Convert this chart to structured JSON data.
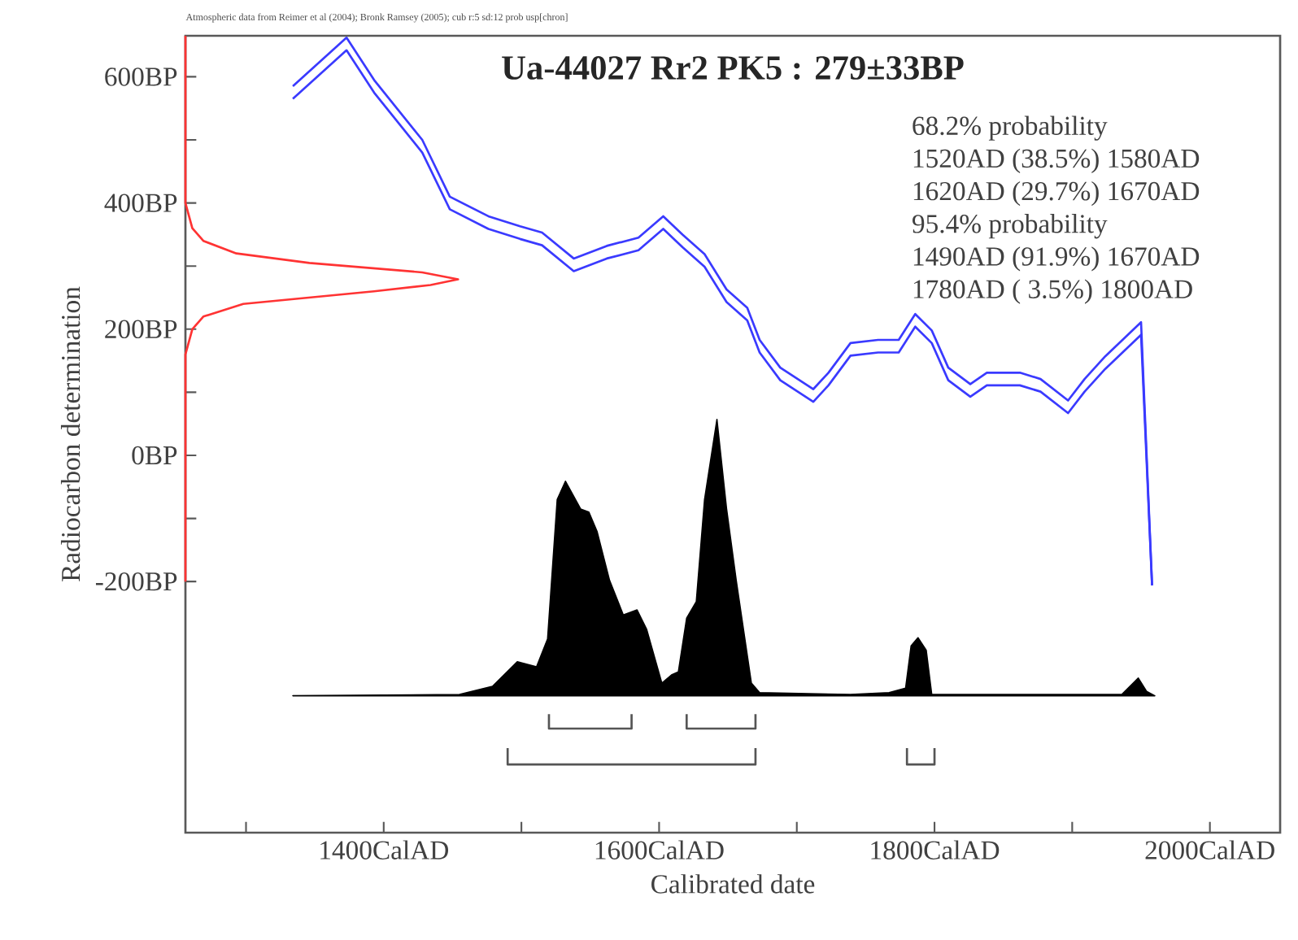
{
  "chart_data": {
    "type": "line",
    "title": "Ua-44027 Rr2 PK5 : 279±33BP",
    "xlabel": "Calibrated date",
    "ylabel": "Radiocarbon determination",
    "annotations": [
      "Atmospheric data from Reimer et al (2004); Bronk Ramsey (2005); cub r:5 sd:12 prob usp[chron]",
      "68.2% probability",
      "1520AD (38.5%) 1580AD",
      "1620AD (29.7%) 1670AD",
      "95.4% probability",
      "1490AD (91.9%) 1670AD",
      "1780AD ( 3.5%) 1800AD"
    ],
    "xlim": [
      1256,
      2051
    ],
    "ylim": [
      -598,
      665
    ],
    "xticks": [
      {
        "value": 1300,
        "label": null
      },
      {
        "value": 1400,
        "label": "1400CalAD"
      },
      {
        "value": 1500,
        "label": null
      },
      {
        "value": 1600,
        "label": "1600CalAD"
      },
      {
        "value": 1700,
        "label": null
      },
      {
        "value": 1800,
        "label": "1800CalAD"
      },
      {
        "value": 1900,
        "label": null
      },
      {
        "value": 2000,
        "label": "2000CalAD"
      }
    ],
    "yticks": [
      {
        "value": -200,
        "label": "-200BP"
      },
      {
        "value": -100,
        "label": null
      },
      {
        "value": 0,
        "label": "0BP"
      },
      {
        "value": 100,
        "label": null
      },
      {
        "value": 200,
        "label": "200BP"
      },
      {
        "value": 300,
        "label": null
      },
      {
        "value": 400,
        "label": "400BP"
      },
      {
        "value": 500,
        "label": null
      },
      {
        "value": 600,
        "label": "600BP"
      }
    ],
    "marker": "none",
    "series": [
      {
        "color": "#3a3aff",
        "x": [
          1334,
          1373,
          1393,
          1428,
          1448,
          1476,
          1499,
          1515,
          1538,
          1562,
          1585,
          1603,
          1617,
          1633,
          1649,
          1664,
          1673,
          1688,
          1712,
          1723,
          1739,
          1759,
          1774,
          1786,
          1798,
          1810,
          1826,
          1838,
          1862,
          1877,
          1897,
          1909,
          1924,
          1950,
          1958
        ],
        "values": [
          585,
          662,
          595,
          500,
          410,
          379,
          363,
          353,
          312,
          332,
          345,
          379,
          350,
          319,
          263,
          234,
          183,
          139,
          105,
          131,
          178,
          183,
          183,
          224,
          198,
          139,
          113,
          131,
          131,
          121,
          87,
          121,
          157,
          211,
          -206
        ]
      },
      {
        "color": "#3a3aff",
        "x": [
          1334,
          1373,
          1393,
          1428,
          1448,
          1476,
          1499,
          1515,
          1538,
          1562,
          1585,
          1603,
          1617,
          1633,
          1649,
          1664,
          1673,
          1688,
          1712,
          1723,
          1739,
          1759,
          1774,
          1786,
          1798,
          1810,
          1826,
          1838,
          1862,
          1877,
          1897,
          1909,
          1924,
          1950,
          1958
        ],
        "values": [
          565,
          642,
          575,
          480,
          390,
          359,
          343,
          333,
          292,
          312,
          325,
          359,
          330,
          299,
          243,
          214,
          163,
          119,
          85,
          111,
          158,
          163,
          163,
          204,
          178,
          119,
          93,
          111,
          111,
          101,
          67,
          101,
          137,
          191,
          -206
        ]
      },
      {
        "color": "#ff3333",
        "x": [
          1256,
          1256,
          1261,
          1269,
          1298,
          1393,
          1434,
          1454,
          1428,
          1346,
          1293,
          1269,
          1261,
          1256,
          1256
        ],
        "values": [
          -200,
          160,
          200,
          220,
          240,
          260,
          270,
          279,
          290,
          305,
          320,
          340,
          360,
          400,
          665
        ]
      },
      {
        "type": "area",
        "color": "#000000",
        "x": [
          1334,
          1455,
          1479,
          1497,
          1511,
          1519,
          1526,
          1532,
          1543,
          1549,
          1555,
          1564,
          1574,
          1584,
          1591,
          1602,
          1609,
          1614,
          1620,
          1627,
          1633,
          1642,
          1649,
          1656,
          1667,
          1673,
          1739,
          1767,
          1779,
          1783,
          1788,
          1794,
          1798,
          1936,
          1948,
          1954,
          1960
        ],
        "values": [
          -381,
          -379,
          -366,
          -327,
          -335,
          -291,
          -70,
          -41,
          -85,
          -90,
          -121,
          -198,
          -253,
          -245,
          -276,
          -361,
          -348,
          -343,
          -258,
          -232,
          -70,
          57,
          -85,
          -198,
          -361,
          -376,
          -379,
          -376,
          -369,
          -302,
          -289,
          -309,
          -379,
          -379,
          -353,
          -374,
          -381
        ]
      },
      {
        "color": "#555555",
        "x": [
          1520,
          1520,
          1580,
          1580,
          1600,
          1620,
          1620,
          1670,
          1670
        ],
        "values": [
          -410,
          -433,
          -433,
          -410,
          null,
          -410,
          -433,
          -433,
          -410
        ]
      },
      {
        "color": "#555555",
        "x": [
          1490,
          1490,
          1670,
          1670,
          1700,
          1780,
          1780,
          1800,
          1800
        ],
        "values": [
          -464,
          -490,
          -490,
          -464,
          null,
          -464,
          -490,
          -490,
          -464
        ]
      }
    ]
  }
}
